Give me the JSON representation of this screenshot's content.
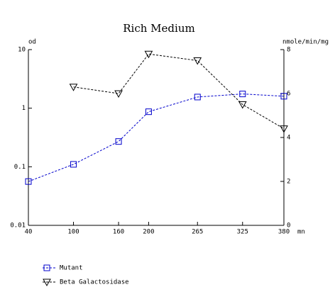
{
  "chart_data": {
    "type": "line",
    "title": "Rich Medium",
    "ylabel": "od",
    "y2label": "nmole/min/mg",
    "xlabel": "mn",
    "x": [
      40,
      100,
      160,
      200,
      265,
      325,
      380
    ],
    "xlim": [
      40,
      380
    ],
    "xticks": [
      40,
      100,
      160,
      200,
      265,
      325,
      380
    ],
    "ylim": [
      0.01,
      10
    ],
    "yticks": [
      0.01,
      0.1,
      1,
      10
    ],
    "yscale": "log",
    "y2lim": [
      0,
      8
    ],
    "y2ticks": [
      0,
      2,
      4,
      6,
      8
    ],
    "series": [
      {
        "name": "Mutant",
        "color": "#0000cc",
        "marker": "square",
        "axis": "y",
        "values": [
          0.056,
          0.11,
          0.27,
          0.87,
          1.55,
          1.75,
          1.6
        ]
      },
      {
        "name": "Beta Galactosidase",
        "color": "#000000",
        "marker": "triangle-down",
        "axis": "y2",
        "values": [
          null,
          6.3,
          6.0,
          7.8,
          7.5,
          5.5,
          4.4
        ]
      }
    ]
  }
}
